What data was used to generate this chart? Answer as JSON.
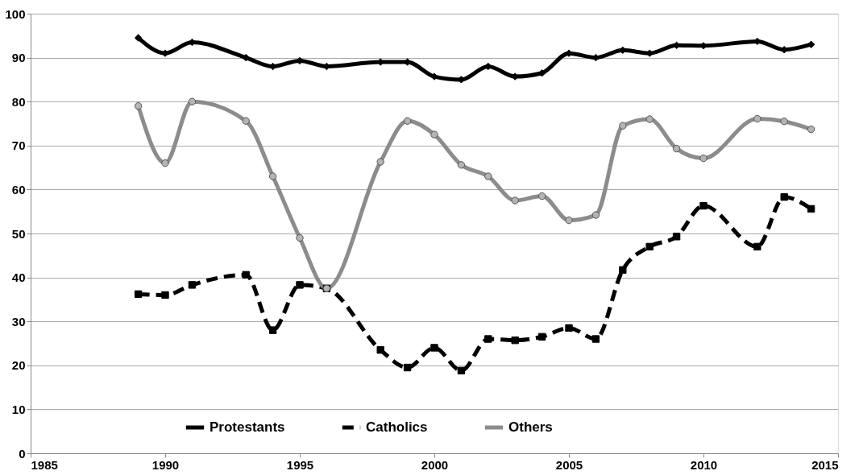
{
  "chart_data": {
    "type": "line",
    "x": [
      1989,
      1990,
      1991,
      1993,
      1994,
      1995,
      1996,
      1998,
      1999,
      2000,
      2001,
      2002,
      2003,
      2004,
      2005,
      2006,
      2007,
      2008,
      2009,
      2010,
      2012,
      2013,
      2014
    ],
    "series": [
      {
        "name": "Protestants",
        "color": "#000000",
        "marker": "diamond",
        "line_style": "solid",
        "values": [
          94.5,
          91,
          93.5,
          90,
          88,
          89.3,
          88,
          89,
          89,
          85.7,
          85,
          88,
          85.7,
          86.5,
          91,
          90,
          91.7,
          91,
          92.8,
          92.7,
          93.7,
          91.8,
          93
        ]
      },
      {
        "name": "Catholics",
        "color": "#000000",
        "marker": "square",
        "line_style": "dashed",
        "values": [
          36.2,
          36,
          38.3,
          40.6,
          28,
          38.3,
          37.5,
          23.5,
          19.5,
          24,
          18.8,
          26,
          25.7,
          26.5,
          28.5,
          26,
          41.7,
          47,
          49.3,
          56.3,
          47,
          58.3,
          55.6
        ]
      },
      {
        "name": "Others",
        "color": "#8c8c8c",
        "marker": "circle",
        "line_style": "solid",
        "values": [
          79,
          66,
          80,
          75.6,
          63,
          49,
          37.5,
          66.3,
          75.6,
          72.5,
          65.6,
          63,
          57.5,
          58.5,
          53,
          54.2,
          74.5,
          76,
          69.3,
          67.1,
          76.1,
          75.5,
          73.7
        ]
      }
    ],
    "xlim": [
      1985,
      2015
    ],
    "xticks": [
      1985,
      1990,
      1995,
      2000,
      2005,
      2010,
      2015
    ],
    "ylim": [
      0,
      100
    ],
    "yticks": [
      0,
      10,
      20,
      30,
      40,
      50,
      60,
      70,
      80,
      90,
      100
    ],
    "grid": "y",
    "legend": "bottom"
  }
}
